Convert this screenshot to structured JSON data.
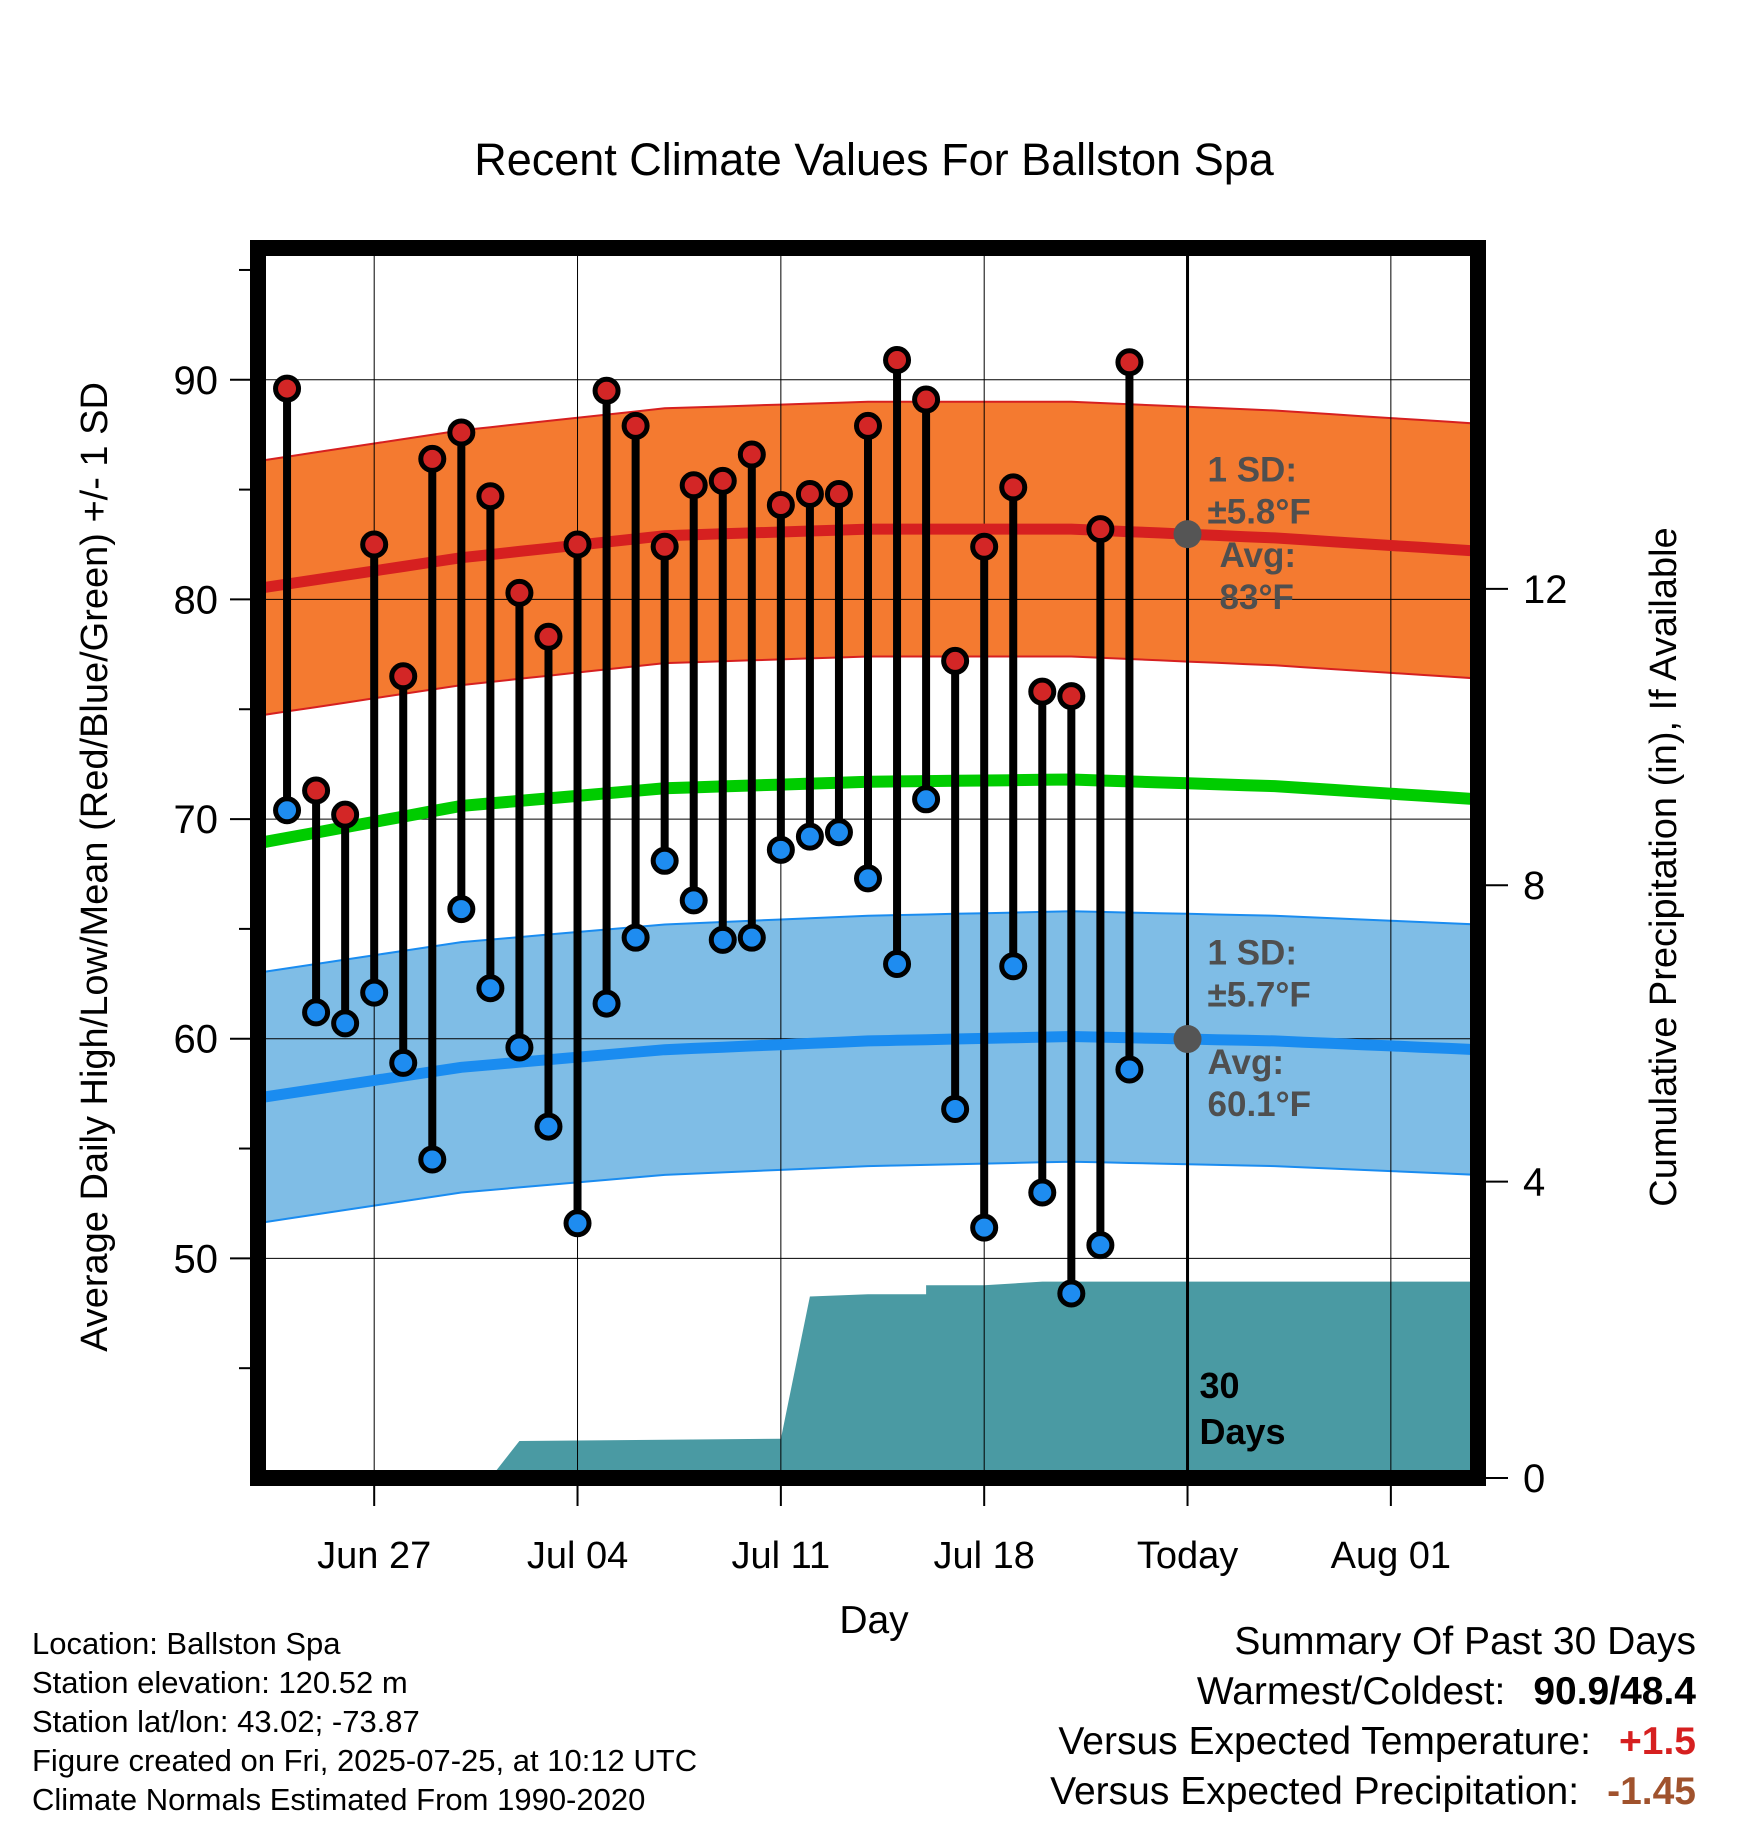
{
  "chart_data": {
    "type": "line",
    "title": "Recent Climate Values For Ballston Spa",
    "xlabel": "Day",
    "ylabel": "Average Daily High/Low/Mean (Red/Blue/Green) +/- 1 SD",
    "y2label": "Cumulative Precipitation (in), If Available",
    "ylim": [
      40,
      96
    ],
    "y2lim": [
      0,
      16.6
    ],
    "xlim": [
      "2025-06-23",
      "2025-08-04"
    ],
    "x_ticks": [
      {
        "date": "2025-06-27",
        "label": "Jun 27"
      },
      {
        "date": "2025-07-04",
        "label": "Jul 04"
      },
      {
        "date": "2025-07-11",
        "label": "Jul 11"
      },
      {
        "date": "2025-07-18",
        "label": "Jul 18"
      },
      {
        "date": "2025-07-25",
        "label": "Today"
      },
      {
        "date": "2025-08-01",
        "label": "Aug 01"
      }
    ],
    "y_ticks": [
      50,
      60,
      70,
      80,
      90
    ],
    "y2_ticks": [
      0,
      4,
      8,
      12
    ],
    "today": "2025-07-25",
    "today_label": "30 Days",
    "grid": true,
    "daily": [
      {
        "date": "2025-06-24",
        "high": 89.6,
        "low": 70.4
      },
      {
        "date": "2025-06-25",
        "high": 71.3,
        "low": 61.2
      },
      {
        "date": "2025-06-26",
        "high": 70.2,
        "low": 60.7
      },
      {
        "date": "2025-06-27",
        "high": 82.5,
        "low": 62.1
      },
      {
        "date": "2025-06-28",
        "high": 76.5,
        "low": 58.9
      },
      {
        "date": "2025-06-29",
        "high": 86.4,
        "low": 54.5
      },
      {
        "date": "2025-06-30",
        "high": 87.6,
        "low": 65.9
      },
      {
        "date": "2025-07-01",
        "high": 84.7,
        "low": 62.3
      },
      {
        "date": "2025-07-02",
        "high": 80.3,
        "low": 59.6
      },
      {
        "date": "2025-07-03",
        "high": 78.3,
        "low": 56.0
      },
      {
        "date": "2025-07-04",
        "high": 82.5,
        "low": 51.6
      },
      {
        "date": "2025-07-05",
        "high": 89.5,
        "low": 61.6
      },
      {
        "date": "2025-07-06",
        "high": 87.9,
        "low": 64.6
      },
      {
        "date": "2025-07-07",
        "high": 82.4,
        "low": 68.1
      },
      {
        "date": "2025-07-08",
        "high": 85.2,
        "low": 66.3
      },
      {
        "date": "2025-07-09",
        "high": 85.4,
        "low": 64.5
      },
      {
        "date": "2025-07-10",
        "high": 86.6,
        "low": 64.6
      },
      {
        "date": "2025-07-11",
        "high": 84.3,
        "low": 68.6
      },
      {
        "date": "2025-07-12",
        "high": 84.8,
        "low": 69.2
      },
      {
        "date": "2025-07-13",
        "high": 84.8,
        "low": 69.4
      },
      {
        "date": "2025-07-14",
        "high": 87.9,
        "low": 67.3
      },
      {
        "date": "2025-07-15",
        "high": 90.9,
        "low": 63.4
      },
      {
        "date": "2025-07-16",
        "high": 89.1,
        "low": 70.9
      },
      {
        "date": "2025-07-17",
        "high": 77.2,
        "low": 56.8
      },
      {
        "date": "2025-07-18",
        "high": 82.4,
        "low": 51.4
      },
      {
        "date": "2025-07-19",
        "high": 85.1,
        "low": 63.3
      },
      {
        "date": "2025-07-20",
        "high": 75.8,
        "low": 53.0
      },
      {
        "date": "2025-07-21",
        "high": 75.6,
        "low": 48.4
      },
      {
        "date": "2025-07-22",
        "high": 83.2,
        "low": 50.6
      },
      {
        "date": "2025-07-23",
        "high": 90.8,
        "low": 58.6
      }
    ],
    "normal_high": {
      "dates": [
        "2025-06-23",
        "2025-06-30",
        "2025-07-07",
        "2025-07-14",
        "2025-07-21",
        "2025-07-28",
        "2025-08-04"
      ],
      "values": [
        80.5,
        81.9,
        82.9,
        83.2,
        83.2,
        82.8,
        82.2
      ],
      "sd": 5.8,
      "sd_label": "1 SD:",
      "sd_value": "±5.8°F",
      "avg_label": "Avg:",
      "avg_value": "83°F"
    },
    "normal_low": {
      "dates": [
        "2025-06-23",
        "2025-06-30",
        "2025-07-07",
        "2025-07-14",
        "2025-07-21",
        "2025-07-28",
        "2025-08-04"
      ],
      "values": [
        57.3,
        58.7,
        59.5,
        59.9,
        60.1,
        59.9,
        59.5
      ],
      "sd": 5.7,
      "sd_label": "1 SD:",
      "sd_value": "±5.7°F",
      "avg_label": "Avg:",
      "avg_value": "60.1°F"
    },
    "normal_mean": {
      "dates": [
        "2025-06-23",
        "2025-06-30",
        "2025-07-07",
        "2025-07-14",
        "2025-07-21",
        "2025-07-28",
        "2025-08-04"
      ],
      "values": [
        68.9,
        70.6,
        71.4,
        71.7,
        71.8,
        71.5,
        70.9
      ]
    },
    "precip_cumulative": {
      "dates": [
        "2025-06-23",
        "2025-07-01",
        "2025-07-02",
        "2025-07-11",
        "2025-07-12",
        "2025-07-14",
        "2025-07-16",
        "2025-07-16",
        "2025-07-18",
        "2025-07-20",
        "2025-07-25",
        "2025-08-04"
      ],
      "values": [
        0.0,
        0.0,
        0.5,
        0.53,
        2.45,
        2.48,
        2.48,
        2.6,
        2.6,
        2.65,
        2.65,
        2.65
      ]
    },
    "colors": {
      "high_band": "#f47a30",
      "high_line": "#d62020",
      "low_band": "#7fbde6",
      "low_line": "#1a8cf0",
      "mean_line": "#00cc00",
      "precip": "#4a9aa3",
      "high_dot": "#d32626",
      "low_dot": "#1e8cf0",
      "avg_marker": "#555555",
      "annotation": "#4f4f4f"
    }
  },
  "footer": {
    "location": "Location: Ballston Spa",
    "elevation": "Station elevation: 120.52 m",
    "latlon": "Station lat/lon: 43.02; -73.87",
    "created": "Figure created on Fri, 2025-07-25, at 10:12 UTC",
    "normals": "Climate Normals Estimated From 1990-2020"
  },
  "summary": {
    "title": "Summary Of Past 30 Days",
    "warm_cold_label": "Warmest/Coldest:",
    "warm_cold_value": "90.9/48.4",
    "temp_label": "Versus Expected Temperature:",
    "temp_value": "+1.5",
    "temp_color": "#d62020",
    "precip_label": "Versus Expected Precipitation:",
    "precip_value": "-1.45",
    "precip_color": "#a0522d"
  }
}
